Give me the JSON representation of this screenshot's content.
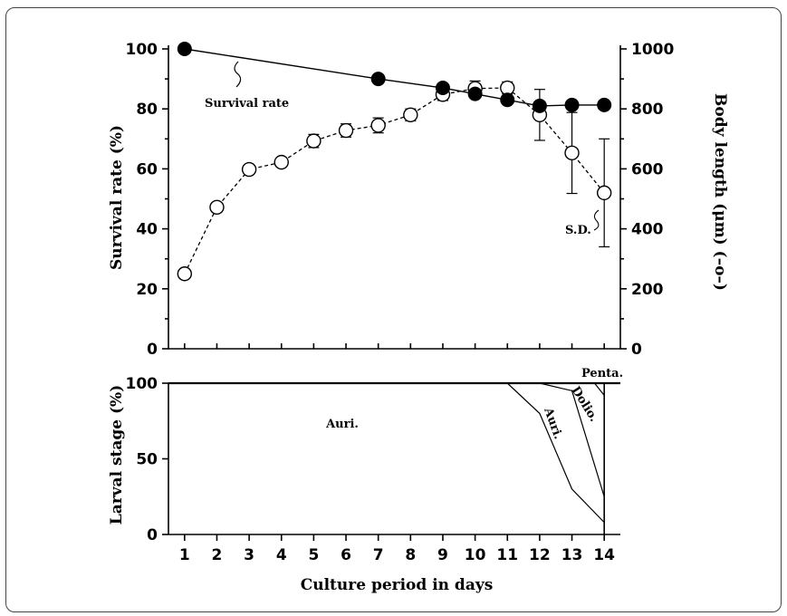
{
  "chart_data": [
    {
      "type": "line",
      "panel": "top",
      "xlabel": "Culture period in days",
      "x_ticks": [
        1,
        2,
        3,
        4,
        5,
        6,
        7,
        8,
        9,
        10,
        11,
        12,
        13,
        14
      ],
      "xlim": [
        0.5,
        14.5
      ],
      "left_axis": {
        "label": "Survival rate (%)",
        "ticks": [
          0,
          20,
          40,
          60,
          80,
          100
        ],
        "ylim": [
          0,
          100
        ]
      },
      "right_axis": {
        "label": "Body length (μm) (–o–)",
        "ticks": [
          0,
          200,
          400,
          600,
          800,
          1000
        ],
        "ylim": [
          0,
          1000
        ]
      },
      "series": [
        {
          "name": "Survival rate",
          "axis": "left",
          "marker": "filled-circle",
          "line": "solid",
          "x": [
            1,
            7,
            9,
            10,
            11,
            12,
            13,
            14
          ],
          "y": [
            100,
            90,
            87,
            85,
            83,
            81,
            81.3,
            81.3
          ]
        },
        {
          "axis": "right",
          "marker": "open-circle",
          "line": "dashed",
          "x": [
            1,
            2,
            3,
            4,
            5,
            6,
            7,
            8,
            9,
            10,
            11,
            12,
            13,
            14
          ],
          "y": [
            250,
            472,
            598,
            622,
            693,
            728,
            745,
            780,
            848,
            868,
            870,
            780,
            653,
            520
          ],
          "sd": [
            0,
            0,
            12,
            15,
            22,
            22,
            25,
            20,
            20,
            25,
            20,
            85,
            135,
            180
          ]
        }
      ],
      "annotations": [
        {
          "text": "Survival rate",
          "target": "series 1"
        },
        {
          "text": "S.D.",
          "target": "error bar day 14"
        }
      ]
    },
    {
      "type": "area",
      "panel": "bottom",
      "ylabel": "Larval stage (%)",
      "y_ticks": [
        0,
        50,
        100
      ],
      "ylim": [
        0,
        100
      ],
      "x_ticks": [
        1,
        2,
        3,
        4,
        5,
        6,
        7,
        8,
        9,
        10,
        11,
        12,
        13,
        14
      ],
      "xlabel": "Culture period in days",
      "boundaries": [
        {
          "x": [
            11,
            12,
            13,
            14
          ],
          "y": [
            100,
            80,
            30,
            8
          ]
        },
        {
          "x": [
            12,
            13,
            14
          ],
          "y": [
            100,
            95,
            25
          ]
        },
        {
          "x": [
            13.7,
            14
          ],
          "y": [
            100,
            92
          ]
        }
      ],
      "labels": [
        {
          "text": "Auri.",
          "region": "whole panel"
        },
        {
          "text": "Auri.",
          "region": "between boundary 1 and 2"
        },
        {
          "text": "Dolio.",
          "region": "between boundary 2 and 3"
        },
        {
          "text": "Penta.",
          "region": "top corner"
        }
      ]
    }
  ]
}
